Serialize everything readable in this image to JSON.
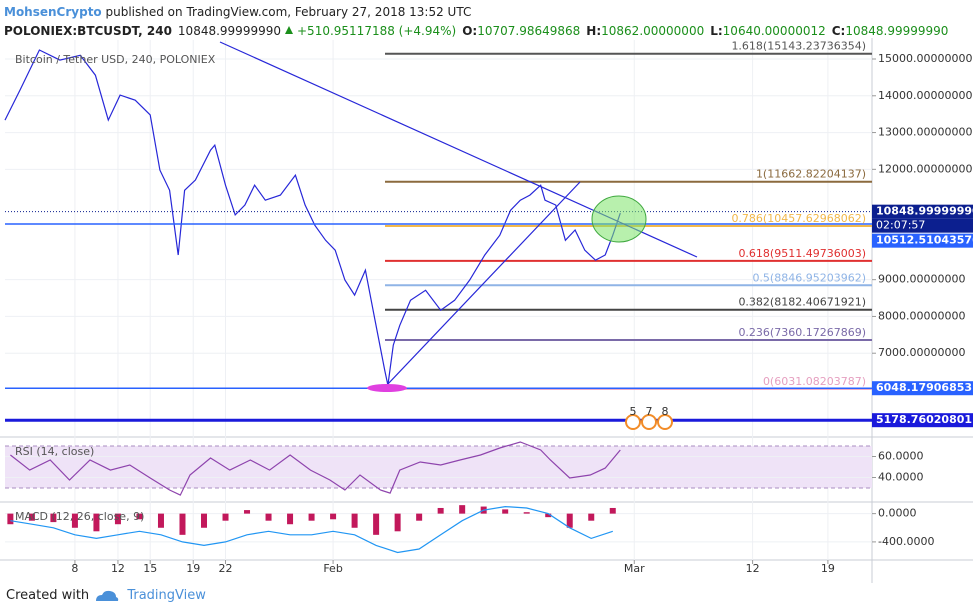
{
  "header": {
    "publisher": "MohsenCrypto",
    "published": "published on TradingView.com, February 27, 2018 13:52 UTC",
    "symbol": "POLONIEX:BTCUSDT, 240",
    "last": "10848.99999990",
    "change": "+510.95117188 (+4.94%)",
    "open_label": "O:",
    "open": "10707.98649868",
    "high_label": "H:",
    "high": "10862.00000000",
    "low_label": "L:",
    "low": "10640.00000012",
    "close_label": "C:",
    "close": "10848.99999990"
  },
  "chart_data": [
    {
      "type": "line",
      "title": "Bitcoin / Tether USD, 240, POLONIEX",
      "x": [
        1.5,
        2.9,
        4.7,
        6.6,
        8.5,
        9.9,
        11.1,
        12.2,
        13.6,
        15.0,
        15.9,
        16.8,
        17.6,
        18.2,
        19.2,
        20.6,
        21.0,
        22.0,
        22.9,
        23.8,
        24.7,
        25.7,
        27.1,
        28.5,
        29.4,
        30.3,
        31.3,
        32.2,
        33.1,
        34.0,
        35.0,
        35.9,
        36.8,
        37.1,
        37.6,
        38.2,
        39.2,
        40.6,
        42.0,
        43.3,
        44.7,
        46.1,
        47.5,
        48.5,
        49.4,
        50.3,
        51.3,
        51.7,
        52.7,
        53.6,
        54.5,
        55.4,
        56.4,
        57.3,
        58.0,
        58.7
      ],
      "series": [
        {
          "color": "#2727d8",
          "values": [
            13340,
            14160,
            15245,
            14970,
            15100,
            14560,
            13340,
            14020,
            13880,
            13480,
            11980,
            11430,
            9670,
            11430,
            11710,
            12520,
            12660,
            11570,
            10760,
            11030,
            11570,
            11160,
            11300,
            11840,
            11030,
            10480,
            10070,
            9800,
            8990,
            8580,
            9260,
            7900,
            6540,
            6130,
            7220,
            7760,
            8440,
            8710,
            8170,
            8440,
            8990,
            9670,
            10210,
            10890,
            11160,
            11300,
            11570,
            11160,
            11030,
            10070,
            10350,
            9800,
            9530,
            9670,
            10210,
            10810
          ]
        }
      ],
      "xlim": [
        1.5,
        82.1
      ],
      "xticks": [
        8,
        15,
        22,
        {
          "value": 32,
          "label": "Feb"
        },
        12,
        19,
        {
          "value": 60,
          "label": "Mar"
        },
        {
          "value": 71,
          "label": "12"
        },
        {
          "value": 78,
          "label": "19"
        }
      ],
      "ylim": [
        4776,
        15517
      ],
      "yticks": [
        {
          "value": 7000,
          "label": "7000.00000000"
        },
        {
          "value": 8000,
          "label": "8000.00000000"
        },
        {
          "value": 9000,
          "label": "9000.00000000"
        },
        {
          "value": 12000,
          "label": "12000.00000000"
        },
        {
          "value": 13000,
          "label": "13000.00000000"
        },
        {
          "value": 14000,
          "label": "14000.00000000"
        },
        {
          "value": 15000,
          "label": "15000.00000000"
        }
      ],
      "grid": true,
      "levels": [
        {
          "label": "1.618(15143.23736354)",
          "value": 15143.23736354,
          "color": "#555555"
        },
        {
          "label": "1(11662.82204137)",
          "value": 11662.82204137,
          "color": "#8b6a3e"
        },
        {
          "label": "0.786(10457.62968062)",
          "value": 10457.62968062,
          "color": "#f2b84b"
        },
        {
          "label": "0.618(9511.49736003)",
          "value": 9511.49736003,
          "color": "#e03030"
        },
        {
          "label": "0.5(8846.95203962)",
          "value": 8846.95203962,
          "color": "#8fb4e6"
        },
        {
          "label": "0.382(8182.40671921)",
          "value": 8182.40671921,
          "color": "#444444"
        },
        {
          "label": "0.236(7360.17267869)",
          "value": 7360.17267869,
          "color": "#7a6aa8"
        },
        {
          "label": "0(6031.08203787)",
          "value": 6031.08203787,
          "color": "#e6a0c0"
        }
      ],
      "price_lines": [
        {
          "value": 10848.9999999,
          "label": "10848.99999990",
          "color": "#0c1f8f",
          "style": "dotted",
          "countdown": "02:07:57"
        },
        {
          "value": 10512.51043576,
          "label": "10512.51043576",
          "color": "#2962ff"
        },
        {
          "value": 6048.17906853,
          "label": "6048.17906853",
          "color": "#2962ff"
        },
        {
          "value": 5178.76020801,
          "label": "5178.76020801",
          "color": "#1a1adb"
        }
      ],
      "events": [
        "5",
        "7",
        "8"
      ]
    },
    {
      "type": "line",
      "title": "RSI (14, close)",
      "x": [
        2.0,
        3.8,
        5.7,
        7.5,
        9.4,
        11.3,
        13.1,
        15.0,
        16.8,
        17.8,
        18.7,
        20.6,
        22.4,
        24.3,
        26.1,
        28.0,
        29.9,
        31.7,
        33.1,
        34.5,
        36.4,
        37.3,
        38.2,
        40.1,
        42.0,
        43.8,
        45.7,
        47.5,
        49.4,
        51.3,
        52.2,
        54.0,
        55.9,
        57.3,
        58.7
      ],
      "series": [
        {
          "color": "#8e44ad",
          "values": [
            61.4,
            47.1,
            56.7,
            37.6,
            56.7,
            47.1,
            51.9,
            39.5,
            28.1,
            23.3,
            42.4,
            58.6,
            47.1,
            56.7,
            47.1,
            61.4,
            47.1,
            37.6,
            28.1,
            42.4,
            28.1,
            25.2,
            47.1,
            54.8,
            51.9,
            56.7,
            61.4,
            68.1,
            73.8,
            66.2,
            56.7,
            39.5,
            42.4,
            49.0,
            66.2
          ]
        }
      ],
      "ylim": [
        18.6,
        75.7
      ],
      "yticks": [
        {
          "value": 40,
          "label": "40.0000"
        },
        {
          "value": 60,
          "label": "60.0000"
        }
      ],
      "bands": [
        30,
        70
      ]
    },
    {
      "type": "combo",
      "title": "MACD (12, 26, close, 9)",
      "x": [
        2,
        4,
        6,
        8,
        10,
        12,
        14,
        16,
        18,
        20,
        22,
        24,
        26,
        28,
        30,
        32,
        34,
        36,
        38,
        40,
        42,
        44,
        46,
        48,
        50,
        52,
        54,
        56,
        58
      ],
      "series": [
        {
          "type": "bar",
          "color": "#c2185b",
          "values": [
            -150,
            -100,
            -120,
            -200,
            -250,
            -150,
            -80,
            -200,
            -300,
            -200,
            -100,
            50,
            -100,
            -150,
            -100,
            -80,
            -200,
            -300,
            -250,
            -100,
            80,
            120,
            100,
            60,
            20,
            -50,
            -200,
            -100,
            80
          ]
        },
        {
          "type": "line",
          "color": "#2196f3",
          "values": [
            -100,
            -150,
            -200,
            -300,
            -350,
            -300,
            -250,
            -300,
            -400,
            -450,
            -400,
            -300,
            -250,
            -300,
            -300,
            -250,
            -300,
            -450,
            -550,
            -500,
            -300,
            -100,
            50,
            100,
            80,
            0,
            -200,
            -350,
            -250
          ]
        }
      ],
      "ylim": [
        -656,
        122
      ],
      "yticks": [
        {
          "value": 0,
          "label": "0.0000"
        },
        {
          "value": -400,
          "label": "-400.0000"
        }
      ]
    }
  ],
  "footer": {
    "created": "Created with",
    "brand": "TradingView"
  }
}
